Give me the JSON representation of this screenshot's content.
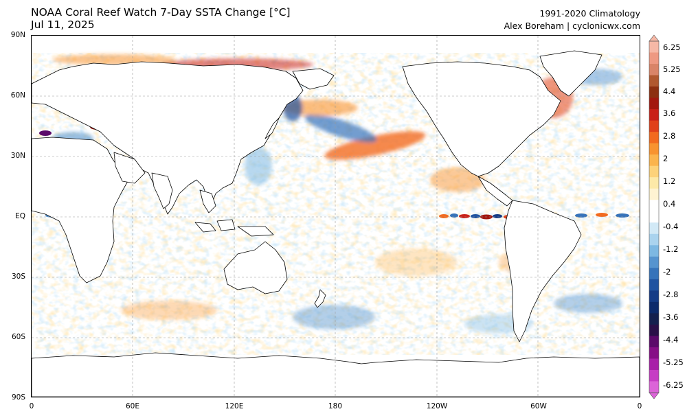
{
  "header": {
    "title": "NOAA Coral Reef Watch 7-Day SSTA Change [°C]",
    "date": "Jul 11, 2025",
    "climatology": "1991-2020 Climatology",
    "credit": "Alex Boreham | cyclonicwx.com"
  },
  "map": {
    "projection": "plate-carree",
    "central_longitude": 180,
    "lat_labels": [
      "90N",
      "60N",
      "30N",
      "EQ",
      "30S",
      "60S",
      "90S"
    ],
    "lon_labels": [
      "0",
      "60E",
      "120E",
      "180",
      "120W",
      "60W",
      "0"
    ],
    "land_color": "#ffffff",
    "gridlines": true
  },
  "colorbar": {
    "labels": [
      "6.25",
      "5.25",
      "4.4",
      "3.6",
      "2.8",
      "2",
      "1.2",
      "0.4",
      "-0.4",
      "-1.2",
      "-2",
      "-2.8",
      "-3.6",
      "-4.4",
      "-5.25",
      "-6.25"
    ],
    "colors": [
      "#f6b8a6",
      "#ee9982",
      "#d98468",
      "#b0582f",
      "#8c2f10",
      "#a2170e",
      "#c92018",
      "#e0401a",
      "#f26a1e",
      "#f8932f",
      "#fbb44d",
      "#fdd27a",
      "#fde9a8",
      "#fff3d2",
      "#ffffff",
      "#ffffff",
      "#d2e9f6",
      "#aad3ee",
      "#7db8e2",
      "#5694cf",
      "#3673ba",
      "#2053a0",
      "#143b86",
      "#0c2a6b",
      "#14204e",
      "#2a1048",
      "#5b0a6a",
      "#860e86",
      "#a81fa8",
      "#c63cc4",
      "#dc64d8"
    ]
  }
}
